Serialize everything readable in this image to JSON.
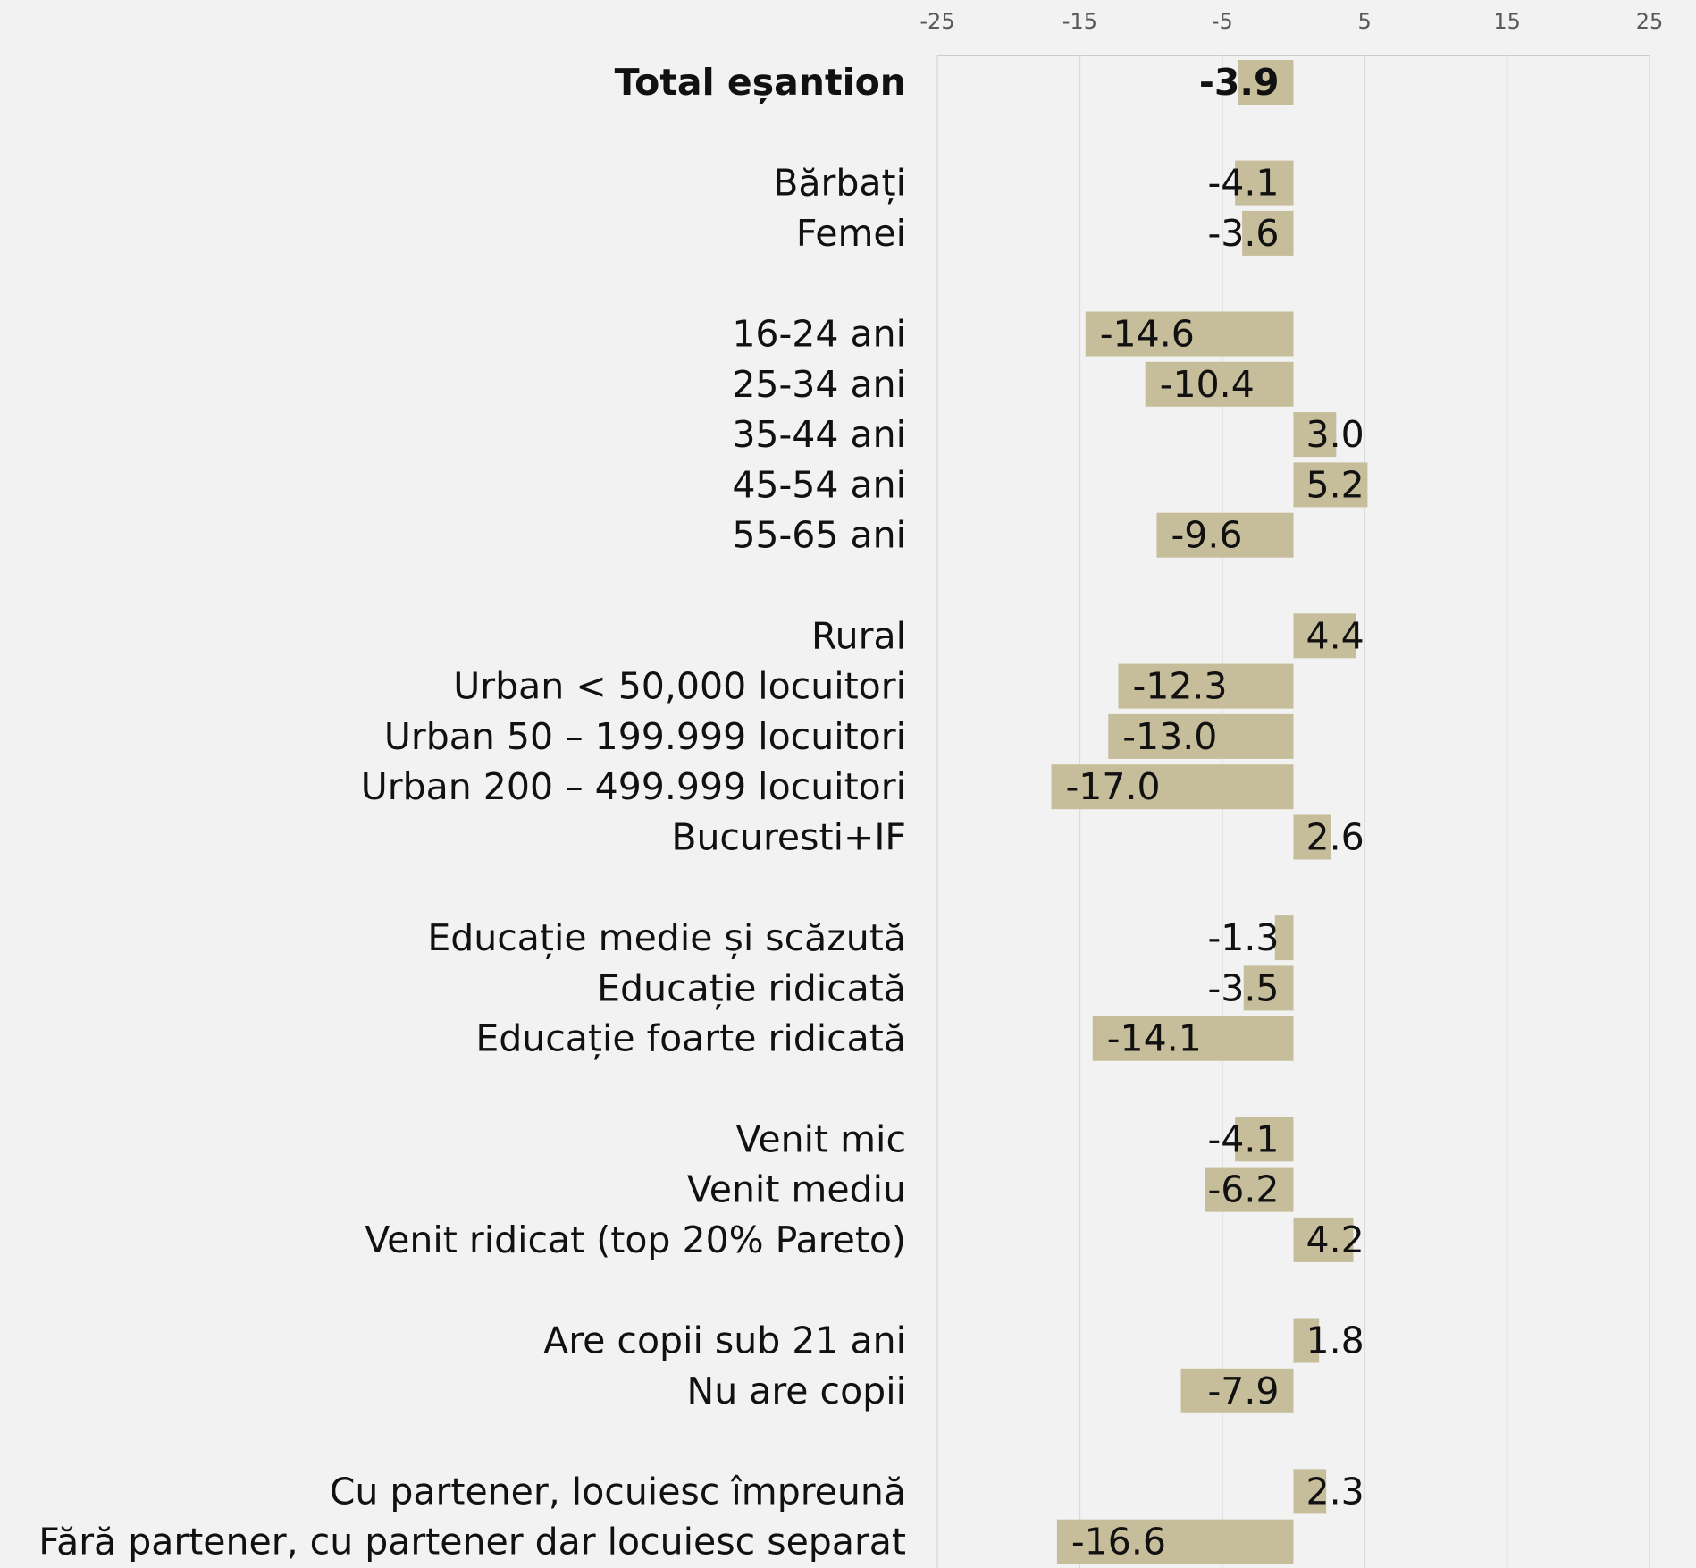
{
  "chart_data": {
    "type": "bar",
    "orientation": "horizontal",
    "title": "",
    "xlabel": "",
    "ylabel": "",
    "xlim": [
      -25,
      25
    ],
    "x_ticks": [
      "-25",
      "-15",
      "-5",
      "5",
      "15",
      "25"
    ],
    "grid": true,
    "legend": "none",
    "colors": {
      "bar": "#c6bd9a",
      "grid": "#d9d9d9",
      "axis": "#bfbfbf",
      "background": "#f2f2f2"
    },
    "categories": [
      "Total eșantion",
      "Bărbați",
      "Femei",
      "16-24 ani",
      "25-34 ani",
      "35-44 ani",
      "45-54 ani",
      "55-65 ani",
      "Rural",
      "Urban < 50,000 locuitori",
      "Urban 50 – 199.999 locuitori",
      "Urban 200 – 499.999 locuitori",
      "Bucuresti+IF",
      "Educație medie și scăzută",
      "Educație ridicată",
      "Educație foarte ridicată",
      "Venit mic",
      "Venit mediu",
      "Venit ridicat (top 20% Pareto)",
      "Are copii sub 21 ani",
      "Nu are copii",
      "Cu partener, locuiesc împreună",
      "Fără partener, cu partener dar locuiesc separat"
    ],
    "values": [
      -3.9,
      -4.1,
      -3.6,
      -14.6,
      -10.4,
      3.0,
      5.2,
      -9.6,
      4.4,
      -12.3,
      -13.0,
      -17.0,
      2.6,
      -1.3,
      -3.5,
      -14.1,
      -4.1,
      -6.2,
      4.2,
      1.8,
      -7.9,
      2.3,
      -16.6
    ],
    "value_labels": [
      "-3.9",
      "-4.1",
      "-3.6",
      "-14.6",
      "-10.4",
      "3.0",
      "5.2",
      "-9.6",
      "4.4",
      "-12.3",
      "-13.0",
      "-17.0",
      "2.6",
      "-1.3",
      "-3.5",
      "-14.1",
      "-4.1",
      "-6.2",
      "4.2",
      "1.8",
      "-7.9",
      "2.3",
      "-16.6"
    ],
    "bold_categories": [
      "Total eșantion"
    ],
    "groups": [
      [
        0
      ],
      [
        1,
        2
      ],
      [
        3,
        4,
        5,
        6,
        7
      ],
      [
        8,
        9,
        10,
        11,
        12
      ],
      [
        13,
        14,
        15
      ],
      [
        16,
        17,
        18
      ],
      [
        19,
        20
      ],
      [
        21,
        22
      ]
    ]
  }
}
